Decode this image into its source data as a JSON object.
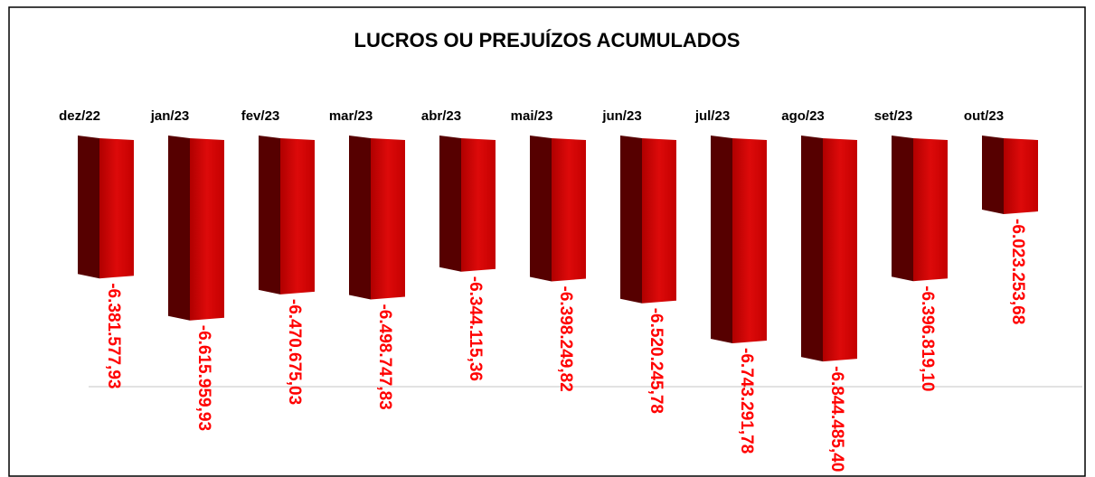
{
  "chart_data": {
    "type": "bar",
    "title": "LUCROS OU PREJUÍZOS ACUMULADOS",
    "categories": [
      "dez/22",
      "jan/23",
      "fev/23",
      "mar/23",
      "abr/23",
      "mai/23",
      "jun/23",
      "jul/23",
      "ago/23",
      "set/23",
      "out/23"
    ],
    "values": [
      -6381577.93,
      -6615959.93,
      -6470675.03,
      -6498747.83,
      -6344115.36,
      -6398249.82,
      -6520245.78,
      -6743291.78,
      -6844485.4,
      -6396819.1,
      -6023253.68
    ],
    "value_labels": [
      "-6.381.577,93",
      "-6.615.959,93",
      "-6.470.675,03",
      "-6.498.747,83",
      "-6.344.115,36",
      "-6.398.249,82",
      "-6.520.245,78",
      "-6.743.291,78",
      "-6.844.485,40",
      "-6.396.819,10",
      "-6.023.253,68"
    ],
    "color": "#cc0000",
    "ylim": [
      -7000000,
      -5600000
    ]
  }
}
